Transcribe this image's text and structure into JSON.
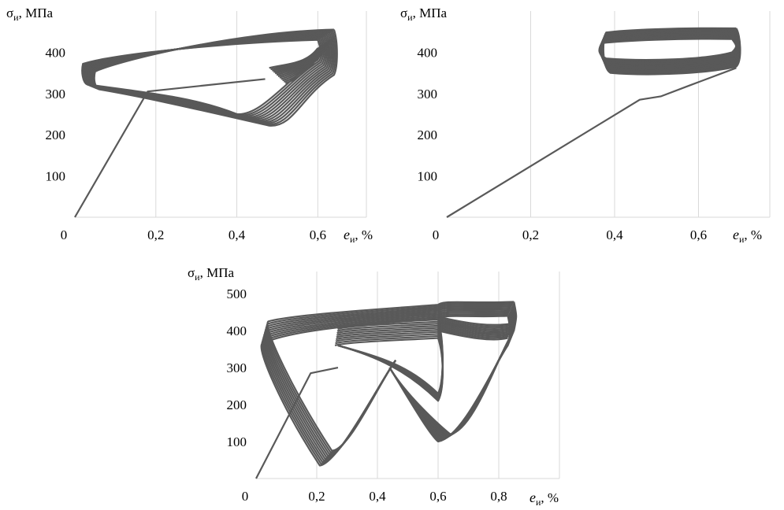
{
  "chart_data": [
    {
      "type": "line",
      "title": "",
      "xlabel": {
        "symbol": "e",
        "sub": "и",
        "unit": ", %"
      },
      "ylabel": {
        "symbol": "σ",
        "sub": "и",
        "unit": ", МПа"
      },
      "xlim": [
        0,
        0.72
      ],
      "ylim": [
        0,
        500
      ],
      "x_ticks": [
        0,
        0.2,
        0.4,
        0.6
      ],
      "x_tick_labels": [
        "0",
        "0,2",
        "0,4",
        "0,6"
      ],
      "y_ticks": [
        100,
        200,
        300,
        400
      ],
      "y_tick_labels": [
        "100",
        "200",
        "300",
        "400"
      ],
      "grid": "vertical",
      "legend": "none",
      "line_color": "#595959",
      "series": [
        {
          "x": [
            0,
            0.18,
            0.47
          ],
          "y": [
            0,
            305,
            335
          ]
        }
      ],
      "cycles": {
        "count": 12,
        "x_left": [
          0.02,
          0.05
        ],
        "x_right": [
          0.6,
          0.64
        ],
        "y_top_right": [
          430,
          455
        ],
        "y_top_left": [
          372,
          353
        ],
        "y_bottom_left": [
          322,
          310
        ],
        "y_valley": [
          250,
          222
        ],
        "x_valley": [
          0.4,
          0.48
        ],
        "y_bottom_right": [
          382,
          345
        ]
      }
    },
    {
      "type": "line",
      "title": "",
      "xlabel": {
        "symbol": "e",
        "sub": "и",
        "unit": ", %"
      },
      "ylabel": {
        "symbol": "σ",
        "sub": "и",
        "unit": ", МПа"
      },
      "xlim": [
        0,
        0.77
      ],
      "ylim": [
        0,
        500
      ],
      "x_ticks": [
        0,
        0.2,
        0.4,
        0.6
      ],
      "x_tick_labels": [
        "0",
        "0,2",
        "0,4",
        "0,6"
      ],
      "y_ticks": [
        100,
        200,
        300,
        400
      ],
      "y_tick_labels": [
        "100",
        "200",
        "300",
        "400"
      ],
      "grid": "vertical",
      "legend": "none",
      "line_color": "#595959",
      "series": [
        {
          "x": [
            0,
            0.46,
            0.51,
            0.58,
            0.69
          ],
          "y": [
            0,
            285,
            293,
            320,
            362
          ]
        }
      ],
      "cycles": {
        "count": 12,
        "x_left": [
          0.37,
          0.38
        ],
        "x_right": [
          0.68,
          0.69
        ],
        "y_top": [
          432,
          458
        ],
        "y_bottom": [
          385,
          350
        ]
      }
    },
    {
      "type": "line",
      "title": "",
      "xlabel": {
        "symbol": "e",
        "sub": "и",
        "unit": ", %"
      },
      "ylabel": {
        "symbol": "σ",
        "sub": "и",
        "unit": ", МПа"
      },
      "xlim": [
        0,
        1.0
      ],
      "ylim": [
        0,
        560
      ],
      "x_ticks": [
        0,
        0.2,
        0.4,
        0.6,
        0.8
      ],
      "x_tick_labels": [
        "0",
        "0,2",
        "0,4",
        "0,6",
        "0,8"
      ],
      "y_ticks": [
        100,
        200,
        300,
        400,
        500
      ],
      "y_tick_labels": [
        "100",
        "200",
        "300",
        "400",
        "500"
      ],
      "grid": "vertical",
      "legend": "none",
      "line_color": "#595959",
      "series": [
        {
          "x": [
            0,
            0.18,
            0.27
          ],
          "y": [
            0,
            285,
            300
          ]
        }
      ],
      "cycles": {
        "count": 10,
        "x_left": [
          0.0,
          0.02
        ],
        "x_right": [
          0.83,
          0.85
        ],
        "y_top": [
          440,
          478
        ],
        "y_right_bottom": [
          360,
          400
        ],
        "y_left_bottom": [
          350,
          410
        ],
        "valley1_x": [
          0.21,
          0.25
        ],
        "valley1_y": [
          35,
          75
        ],
        "valley2_x": [
          0.6,
          0.64
        ],
        "valley2_y": [
          100,
          120
        ],
        "mid_x": [
          0.26,
          0.27
        ],
        "mid_y": [
          360,
          410
        ],
        "knee_x": 0.6,
        "knee_y": [
          210,
          230
        ]
      }
    }
  ]
}
